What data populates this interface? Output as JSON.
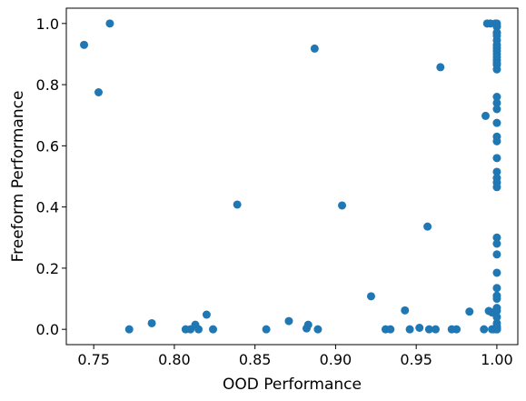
{
  "chart_data": {
    "type": "scatter",
    "xlabel": "OOD Performance",
    "ylabel": "Freeform Performance",
    "xlim": [
      0.733,
      1.013
    ],
    "ylim": [
      -0.05,
      1.05
    ],
    "xticks": [
      0.75,
      0.8,
      0.85,
      0.9,
      0.95,
      1.0
    ],
    "xtick_labels": [
      "0.75",
      "0.80",
      "0.85",
      "0.90",
      "0.95",
      "1.00"
    ],
    "yticks": [
      0.0,
      0.2,
      0.4,
      0.6,
      0.8,
      1.0
    ],
    "ytick_labels": [
      "0.0",
      "0.2",
      "0.4",
      "0.6",
      "0.8",
      "1.0"
    ],
    "grid": false,
    "marker_color": "#1f77b4",
    "series": [
      {
        "x": [
          0.744,
          0.753,
          0.76,
          0.772,
          0.786,
          0.807,
          0.81,
          0.813,
          0.815,
          0.82,
          0.824,
          0.839,
          0.857,
          0.871,
          0.882,
          0.883,
          0.887,
          0.889,
          0.904,
          0.922,
          0.931,
          0.934,
          0.943,
          0.946,
          0.952,
          0.957,
          0.958,
          0.962,
          0.965,
          0.972,
          0.975,
          0.983,
          0.992,
          0.993,
          0.994,
          0.995,
          0.996,
          0.997,
          0.997,
          0.998,
          0.999,
          1.0,
          1.0,
          1.0,
          1.0,
          1.0,
          1.0,
          1.0,
          1.0,
          1.0,
          1.0,
          1.0,
          1.0,
          1.0,
          1.0,
          1.0,
          1.0,
          1.0,
          1.0,
          1.0,
          1.0,
          1.0,
          1.0,
          1.0,
          1.0,
          1.0,
          1.0,
          1.0,
          1.0,
          1.0,
          1.0,
          1.0,
          1.0,
          1.0,
          1.0,
          1.0,
          1.0,
          1.0,
          1.0,
          1.0,
          1.0,
          1.0,
          1.0,
          1.0
        ],
        "y": [
          0.93,
          0.775,
          1.0,
          0.0,
          0.02,
          0.0,
          0.0,
          0.015,
          0.0,
          0.048,
          0.0,
          0.408,
          0.0,
          0.027,
          0.003,
          0.015,
          0.918,
          0.0,
          0.405,
          0.108,
          0.0,
          0.0,
          0.062,
          0.0,
          0.005,
          0.336,
          0.0,
          0.0,
          0.857,
          0.0,
          0.0,
          0.058,
          0.0,
          0.698,
          1.0,
          0.06,
          1.0,
          0.0,
          0.055,
          0.0,
          1.0,
          1.0,
          0.99,
          0.97,
          0.945,
          0.92,
          0.9,
          0.88,
          0.865,
          0.85,
          0.76,
          0.74,
          0.72,
          0.675,
          0.63,
          0.615,
          0.56,
          0.515,
          0.495,
          0.48,
          0.465,
          0.3,
          0.28,
          0.245,
          0.185,
          0.135,
          0.11,
          0.1,
          0.07,
          0.06,
          0.04,
          0.02,
          0.01,
          0.005,
          0.0,
          0.0,
          0.0,
          0.99,
          0.97,
          0.96,
          0.91,
          0.93,
          0.89,
          0.87
        ]
      }
    ]
  }
}
